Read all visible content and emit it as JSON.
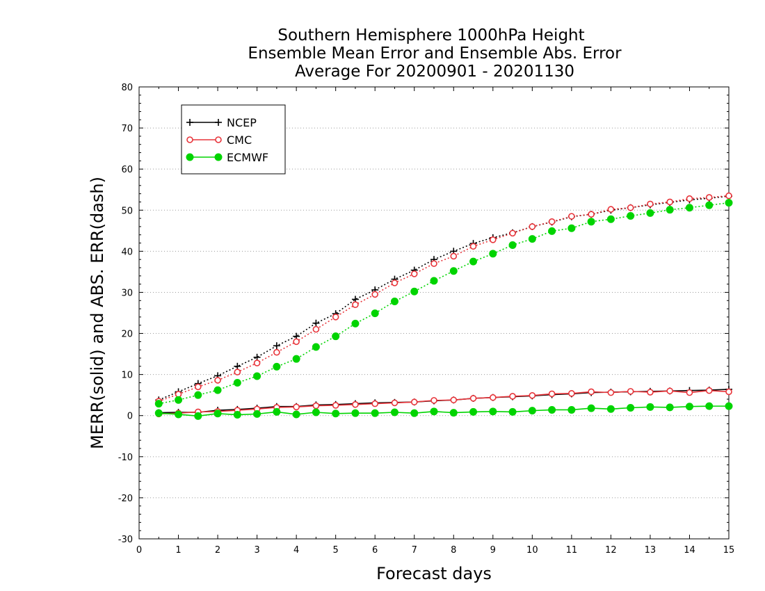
{
  "chart_data": {
    "type": "line",
    "title": [
      "Southern Hemisphere 1000hPa Height",
      "Ensemble Mean Error and Ensemble Abs. Error",
      "Average For 20200901 - 20201130"
    ],
    "xlabel": "Forecast days",
    "ylabel": "MERR(solid) and ABS. ERR(dash)",
    "xlim": [
      0,
      15
    ],
    "ylim": [
      -30,
      80
    ],
    "xticks": [
      "0",
      "1",
      "2",
      "3",
      "4",
      "5",
      "6",
      "7",
      "8",
      "9",
      "10",
      "11",
      "12",
      "13",
      "14",
      "15"
    ],
    "yticks": [
      "-30",
      "-20",
      "-10",
      "0",
      "10",
      "20",
      "30",
      "40",
      "50",
      "60",
      "70",
      "80"
    ],
    "grid": "horizontal dotted",
    "legend_position": "top-left",
    "x": [
      0.5,
      1,
      1.5,
      2,
      2.5,
      3,
      3.5,
      4,
      4.5,
      5,
      5.5,
      6,
      6.5,
      7,
      7.5,
      8,
      8.5,
      9,
      9.5,
      10,
      10.5,
      11,
      11.5,
      12,
      12.5,
      13,
      13.5,
      14,
      14.5,
      15
    ],
    "series": [
      {
        "name": "NCEP",
        "color": "#000000",
        "marker": "plus",
        "abs_err": [
          3.8,
          5.8,
          7.8,
          9.7,
          12.0,
          14.2,
          17.0,
          19.3,
          22.5,
          24.8,
          28.3,
          30.6,
          33.2,
          35.4,
          38.0,
          40.0,
          41.9,
          43.3,
          44.5,
          46.0,
          47.1,
          48.4,
          49.0,
          50.0,
          50.6,
          51.3,
          51.9,
          52.5,
          52.9,
          53.4
        ],
        "mean_err": [
          0.7,
          0.8,
          0.8,
          1.3,
          1.5,
          1.8,
          2.2,
          2.2,
          2.6,
          2.7,
          2.9,
          3.1,
          3.2,
          3.3,
          3.6,
          3.8,
          4.2,
          4.4,
          4.6,
          4.8,
          5.1,
          5.3,
          5.6,
          5.7,
          5.8,
          5.9,
          6.0,
          6.1,
          6.2,
          6.4
        ]
      },
      {
        "name": "CMC",
        "color": "#e8343a",
        "marker": "circle-open",
        "abs_err": [
          3.5,
          5.2,
          7.0,
          8.6,
          10.6,
          12.8,
          15.4,
          18.0,
          21.0,
          24.0,
          27.0,
          29.5,
          32.3,
          34.5,
          37.0,
          38.8,
          41.2,
          42.8,
          44.4,
          46.0,
          47.2,
          48.5,
          49.0,
          50.2,
          50.6,
          51.5,
          52.0,
          52.8,
          53.1,
          53.5
        ],
        "mean_err": [
          0.4,
          0.6,
          0.9,
          1.0,
          1.3,
          1.6,
          2.0,
          2.1,
          2.4,
          2.5,
          2.7,
          2.9,
          3.1,
          3.3,
          3.7,
          3.8,
          4.2,
          4.4,
          4.7,
          4.9,
          5.3,
          5.4,
          5.8,
          5.6,
          5.9,
          5.7,
          6.0,
          5.6,
          6.1,
          5.8
        ]
      },
      {
        "name": "ECMWF",
        "color": "#00d400",
        "marker": "circle-filled",
        "abs_err": [
          2.9,
          3.8,
          5.0,
          6.2,
          8.0,
          9.6,
          11.9,
          13.8,
          16.7,
          19.3,
          22.4,
          24.9,
          27.8,
          30.2,
          32.8,
          35.2,
          37.5,
          39.4,
          41.5,
          43.0,
          44.9,
          45.6,
          47.2,
          47.8,
          48.6,
          49.3,
          50.1,
          50.6,
          51.2,
          51.8
        ],
        "mean_err": [
          0.6,
          0.3,
          -0.1,
          0.5,
          0.2,
          0.4,
          0.9,
          0.3,
          0.8,
          0.5,
          0.6,
          0.6,
          0.8,
          0.6,
          1.0,
          0.7,
          0.9,
          1.0,
          0.9,
          1.2,
          1.4,
          1.4,
          1.8,
          1.6,
          1.9,
          2.1,
          2.0,
          2.2,
          2.3,
          2.3
        ]
      }
    ]
  }
}
